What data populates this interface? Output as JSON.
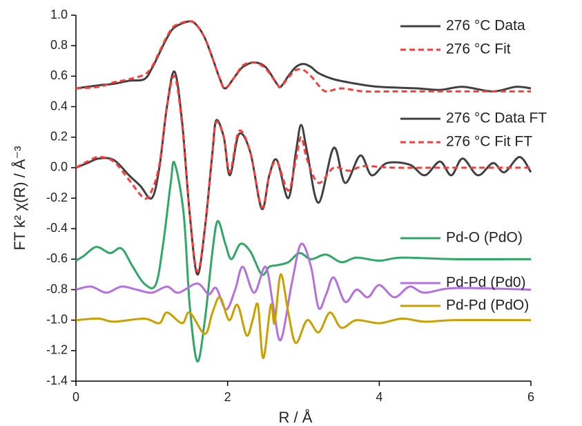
{
  "chart_data": {
    "type": "line",
    "x_label": "R  / Å",
    "y_label": "FT k² χ(R)  / Å⁻³",
    "xlim": [
      0,
      6
    ],
    "xticks": [
      0,
      2,
      4,
      6
    ],
    "ylim": [
      -1.4,
      1.0
    ],
    "yticks": [
      {
        "value": 1.0,
        "label": "1.0"
      },
      0.8,
      0.6,
      0.4,
      0.2,
      {
        "value": 0,
        "label": "0.0"
      },
      -0.2,
      -0.4,
      -0.6,
      -0.8,
      {
        "value": -1.0,
        "label": "-1.0"
      },
      -1.2,
      -1.4
    ],
    "series": [
      {
        "name": "276 °C Data",
        "color": "#404040",
        "style": "solid",
        "x": [
          0,
          0.3,
          0.5,
          0.7,
          0.9,
          1.0,
          1.1,
          1.2,
          1.3,
          1.5,
          1.6,
          1.7,
          1.8,
          1.9,
          1.97,
          2.1,
          2.2,
          2.35,
          2.5,
          2.65,
          2.7,
          2.8,
          2.9,
          3.0,
          3.1,
          3.2,
          3.4,
          3.7,
          4.0,
          4.5,
          4.8,
          5.1,
          5.5,
          5.8,
          6
        ],
        "values": [
          0.52,
          0.54,
          0.55,
          0.57,
          0.58,
          0.65,
          0.75,
          0.85,
          0.92,
          0.96,
          0.93,
          0.85,
          0.72,
          0.58,
          0.52,
          0.6,
          0.66,
          0.69,
          0.66,
          0.55,
          0.53,
          0.6,
          0.66,
          0.68,
          0.66,
          0.62,
          0.58,
          0.55,
          0.53,
          0.52,
          0.51,
          0.53,
          0.5,
          0.53,
          0.52
        ]
      },
      {
        "name": "276 °C Fit",
        "color": "#ff3a3a",
        "style": "dashed",
        "x": [
          0,
          0.3,
          0.5,
          0.7,
          0.9,
          1.0,
          1.1,
          1.2,
          1.3,
          1.5,
          1.6,
          1.7,
          1.8,
          1.9,
          1.97,
          2.1,
          2.2,
          2.35,
          2.5,
          2.65,
          2.7,
          2.8,
          2.9,
          3.0,
          3.1,
          3.2,
          3.3,
          3.5,
          3.8,
          4.2,
          5,
          6
        ],
        "values": [
          0.52,
          0.53,
          0.56,
          0.58,
          0.61,
          0.66,
          0.76,
          0.86,
          0.93,
          0.96,
          0.93,
          0.85,
          0.72,
          0.58,
          0.52,
          0.6,
          0.67,
          0.69,
          0.65,
          0.55,
          0.53,
          0.59,
          0.64,
          0.64,
          0.6,
          0.54,
          0.5,
          0.52,
          0.5,
          0.5,
          0.5,
          0.5
        ]
      },
      {
        "name": "276 °C Data FT",
        "color": "#404040",
        "style": "solid",
        "x": [
          0,
          0.15,
          0.3,
          0.5,
          0.7,
          0.85,
          1.0,
          1.1,
          1.2,
          1.3,
          1.4,
          1.5,
          1.6,
          1.7,
          1.8,
          1.85,
          1.95,
          2.03,
          2.15,
          2.3,
          2.45,
          2.55,
          2.65,
          2.8,
          2.9,
          2.97,
          3.05,
          3.2,
          3.4,
          3.55,
          3.75,
          3.9,
          4.1,
          4.4,
          4.6,
          4.8,
          4.95,
          5.1,
          5.3,
          5.5,
          5.65,
          5.85,
          6
        ],
        "values": [
          0,
          0.03,
          0.06,
          0.05,
          -0.05,
          -0.12,
          -0.2,
          0.0,
          0.4,
          0.63,
          0.3,
          -0.3,
          -0.7,
          -0.4,
          0.1,
          0.31,
          0.2,
          -0.05,
          0.22,
          0.1,
          -0.27,
          -0.05,
          0.05,
          -0.2,
          0.1,
          0.28,
          0.1,
          -0.23,
          0.13,
          -0.1,
          0.08,
          -0.05,
          0.03,
          0.02,
          -0.05,
          0.04,
          -0.05,
          0.06,
          -0.05,
          0.03,
          -0.03,
          0.07,
          -0.03
        ]
      },
      {
        "name": "276 °C Fit FT",
        "color": "#ff3a3a",
        "style": "dashed",
        "x": [
          0,
          0.15,
          0.3,
          0.5,
          0.7,
          0.9,
          1.0,
          1.1,
          1.2,
          1.3,
          1.4,
          1.5,
          1.6,
          1.7,
          1.8,
          1.85,
          1.95,
          2.03,
          2.15,
          2.3,
          2.45,
          2.55,
          2.65,
          2.8,
          2.9,
          2.97,
          3.05,
          3.2,
          3.4,
          3.6,
          3.8,
          4.2,
          5,
          6
        ],
        "values": [
          0,
          0.04,
          0.07,
          0.04,
          -0.08,
          -0.2,
          -0.15,
          0.02,
          0.4,
          0.6,
          0.28,
          -0.3,
          -0.68,
          -0.4,
          0.1,
          0.3,
          0.2,
          -0.03,
          0.24,
          0.1,
          -0.26,
          -0.05,
          0.04,
          -0.15,
          0.05,
          0.2,
          0.05,
          -0.1,
          0.0,
          -0.02,
          0.01,
          0.0,
          0.0,
          0.0
        ]
      },
      {
        "name": "Pd-O (PdO)",
        "color": "#2fa866",
        "style": "solid",
        "x": [
          0,
          0.1,
          0.27,
          0.45,
          0.6,
          0.75,
          0.9,
          1.05,
          1.15,
          1.25,
          1.3,
          1.42,
          1.5,
          1.6,
          1.7,
          1.8,
          1.87,
          1.97,
          2.05,
          2.17,
          2.3,
          2.45,
          2.55,
          2.65,
          2.8,
          2.95,
          3.1,
          3.3,
          3.5,
          3.7,
          4.0,
          4.3,
          5,
          6
        ],
        "values": [
          -0.61,
          -0.58,
          -0.52,
          -0.56,
          -0.53,
          -0.65,
          -0.76,
          -0.77,
          -0.5,
          -0.1,
          0.03,
          -0.3,
          -0.9,
          -1.27,
          -1.0,
          -0.55,
          -0.35,
          -0.5,
          -0.6,
          -0.5,
          -0.55,
          -0.7,
          -0.65,
          -0.64,
          -0.62,
          -0.56,
          -0.6,
          -0.57,
          -0.62,
          -0.59,
          -0.61,
          -0.59,
          -0.6,
          -0.6
        ]
      },
      {
        "name": "Pd-Pd (Pd0)",
        "color": "#b46fe0",
        "style": "solid",
        "x": [
          0,
          0.2,
          0.4,
          0.6,
          0.8,
          1.0,
          1.2,
          1.35,
          1.6,
          1.75,
          1.85,
          1.98,
          2.1,
          2.2,
          2.35,
          2.5,
          2.6,
          2.7,
          2.85,
          2.97,
          3.1,
          3.2,
          3.3,
          3.4,
          3.55,
          3.7,
          3.85,
          4.0,
          4.2,
          4.4,
          4.6,
          5,
          6
        ],
        "values": [
          -0.8,
          -0.78,
          -0.82,
          -0.78,
          -0.8,
          -0.82,
          -0.78,
          -0.82,
          -0.76,
          -0.83,
          -0.79,
          -0.93,
          -0.8,
          -0.65,
          -0.82,
          -0.65,
          -0.9,
          -1.13,
          -0.75,
          -0.5,
          -0.65,
          -0.92,
          -0.83,
          -0.72,
          -0.88,
          -0.8,
          -0.85,
          -0.77,
          -0.85,
          -0.78,
          -0.82,
          -0.79,
          -0.8
        ]
      },
      {
        "name": "Pd-Pd (PdO)",
        "color": "#c9a000",
        "style": "solid",
        "x": [
          0,
          0.3,
          0.5,
          0.9,
          1.1,
          1.2,
          1.4,
          1.5,
          1.7,
          1.8,
          1.9,
          2.02,
          2.13,
          2.25,
          2.33,
          2.4,
          2.47,
          2.57,
          2.62,
          2.7,
          2.8,
          2.9,
          3.05,
          3.2,
          3.35,
          3.5,
          3.7,
          4.0,
          4.3,
          4.6,
          5,
          6
        ],
        "values": [
          -1.0,
          -0.99,
          -1.01,
          -0.99,
          -1.02,
          -0.95,
          -1.02,
          -0.95,
          -1.09,
          -0.95,
          -0.85,
          -1.0,
          -0.9,
          -1.1,
          -1.0,
          -0.9,
          -1.25,
          -0.9,
          -1.02,
          -0.7,
          -0.95,
          -1.15,
          -1.0,
          -1.08,
          -0.95,
          -1.05,
          -1.0,
          -1.02,
          -0.99,
          -1.01,
          -1.0,
          -1.0
        ]
      }
    ]
  }
}
